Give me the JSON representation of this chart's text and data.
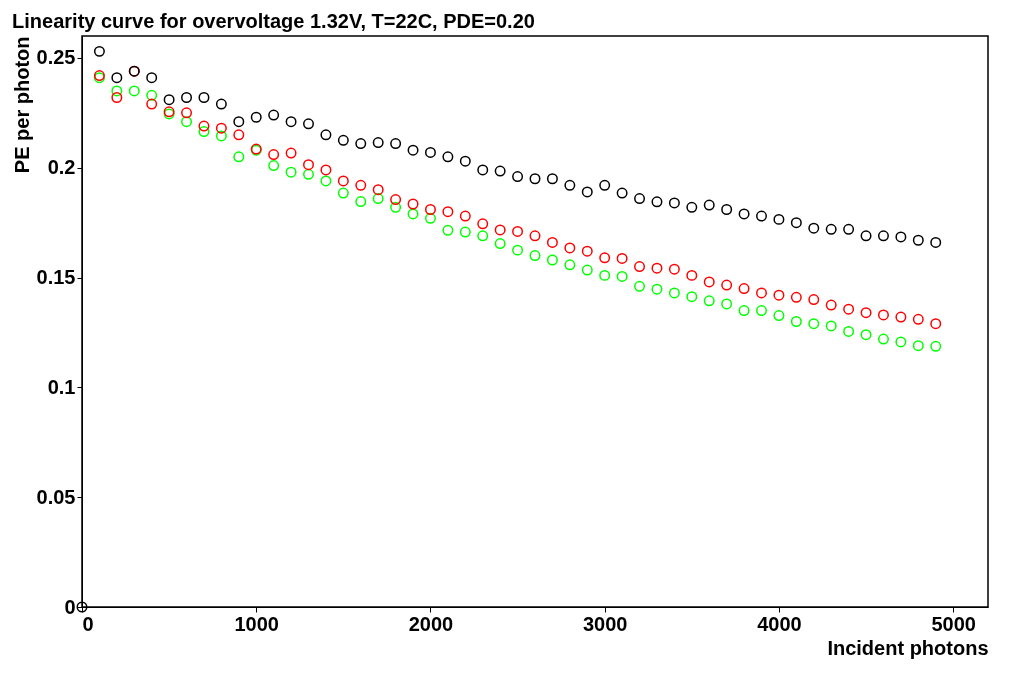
{
  "chart_data": {
    "type": "scatter",
    "title": "Linearity curve for overvoltage 1.32V, T=22C, PDE=0.20",
    "xlabel": "Incident photons",
    "ylabel": "PE per photon",
    "x": [
      0,
      100,
      200,
      300,
      400,
      500,
      600,
      700,
      800,
      900,
      1000,
      1100,
      1200,
      1300,
      1400,
      1500,
      1600,
      1700,
      1800,
      1900,
      2000,
      2100,
      2200,
      2300,
      2400,
      2500,
      2600,
      2700,
      2800,
      2900,
      3000,
      3100,
      3200,
      3300,
      3400,
      3500,
      3600,
      3700,
      3800,
      3900,
      4000,
      4100,
      4200,
      4300,
      4400,
      4500,
      4600,
      4700,
      4800,
      4900
    ],
    "series": [
      {
        "color": "#000000",
        "values": [
          0,
          0.253,
          0.241,
          0.244,
          0.241,
          0.231,
          0.232,
          0.232,
          0.229,
          0.221,
          0.223,
          0.224,
          0.221,
          0.22,
          0.215,
          0.2125,
          0.211,
          0.2115,
          0.211,
          0.208,
          0.207,
          0.205,
          0.203,
          0.199,
          0.1985,
          0.196,
          0.195,
          0.195,
          0.192,
          0.189,
          0.192,
          0.1885,
          0.186,
          0.1845,
          0.184,
          0.182,
          0.183,
          0.181,
          0.179,
          0.178,
          0.1765,
          0.175,
          0.1725,
          0.172,
          0.172,
          0.169,
          0.169,
          0.1685,
          0.167,
          0.166
        ]
      },
      {
        "color": "#ff0000",
        "values": [
          null,
          0.242,
          0.232,
          0.244,
          0.229,
          0.2255,
          0.225,
          0.219,
          0.218,
          0.215,
          0.2085,
          0.206,
          0.2067,
          0.2014,
          0.199,
          0.194,
          0.192,
          0.19,
          0.1855,
          0.1835,
          0.181,
          0.18,
          0.178,
          0.1745,
          0.1717,
          0.171,
          0.169,
          0.166,
          0.1635,
          0.162,
          0.159,
          0.1587,
          0.155,
          0.1543,
          0.1538,
          0.151,
          0.148,
          0.1466,
          0.145,
          0.143,
          0.142,
          0.141,
          0.14,
          0.1375,
          0.1356,
          0.134,
          0.133,
          0.132,
          0.131,
          0.129
        ]
      },
      {
        "color": "#00ff00",
        "values": [
          null,
          0.241,
          0.235,
          0.235,
          0.233,
          0.2245,
          0.221,
          0.2165,
          0.2145,
          0.205,
          0.208,
          0.201,
          0.198,
          0.197,
          0.194,
          0.1885,
          0.1846,
          0.186,
          0.182,
          0.179,
          0.177,
          0.1715,
          0.1707,
          0.169,
          0.1655,
          0.1625,
          0.16,
          0.158,
          0.1558,
          0.1534,
          0.151,
          0.1505,
          0.146,
          0.1447,
          0.143,
          0.1413,
          0.1394,
          0.138,
          0.135,
          0.135,
          0.1327,
          0.13,
          0.129,
          0.128,
          0.1255,
          0.124,
          0.122,
          0.1207,
          0.119,
          0.1187
        ]
      }
    ],
    "xlim": [
      0,
      5200
    ],
    "xticks": [
      0,
      1000,
      2000,
      3000,
      4000,
      5000
    ],
    "ylim": [
      0,
      0.26
    ],
    "yticks": [
      0,
      0.05,
      0.1,
      0.15,
      0.2,
      0.25
    ],
    "marker": "circle",
    "grid": false
  }
}
